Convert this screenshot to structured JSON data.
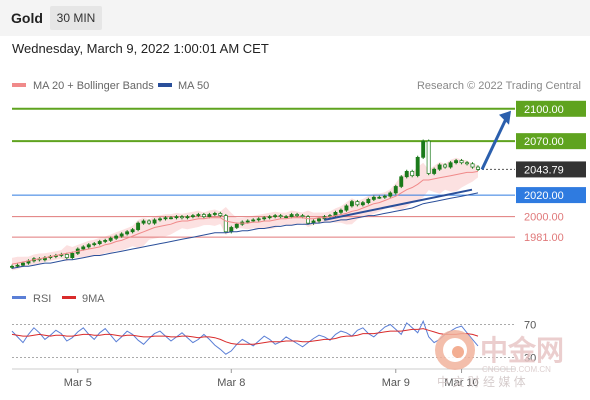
{
  "header": {
    "instrument": "Gold",
    "timeframe": "30 MIN",
    "datetime": "Wednesday, March 9, 2022 1:00:01 AM CET"
  },
  "legend": {
    "ma20": "MA 20 + Bollinger Bands",
    "ma50": "MA 50",
    "credit": "Research © 2022 Trading Central"
  },
  "colors": {
    "resistance": "#5fa31f",
    "pivot": "#2f7be0",
    "support": "#e0797a",
    "ma20": "#f08a8a",
    "ma50": "#2a4f9a",
    "arrow": "#2b5fad",
    "candle": "#1a7a1a",
    "bollinger": "#fbdada",
    "rsi": "#5b7fd6",
    "rsi_ma": "#d92b2b",
    "current": "#333333"
  },
  "chart_data": [
    {
      "type": "candlestick",
      "series_name": "Gold",
      "x_ticks": [
        "Mar 5",
        "Mar 8",
        "Mar 9",
        "Mar 10"
      ],
      "ylim": [
        1945,
        2110
      ],
      "levels": [
        {
          "value": 2100,
          "label": "2100.00",
          "kind": "resistance"
        },
        {
          "value": 2070,
          "label": "2070.00",
          "kind": "resistance"
        },
        {
          "value": 2043.79,
          "label": "2043.79",
          "kind": "current"
        },
        {
          "value": 2020,
          "label": "2020.00",
          "kind": "pivot"
        },
        {
          "value": 2000,
          "label": "2000.00",
          "kind": "support"
        },
        {
          "value": 1981,
          "label": "1981.00",
          "kind": "support"
        }
      ],
      "close": [
        1954,
        1955,
        1957,
        1959,
        1961,
        1960,
        1962,
        1963,
        1964,
        1965,
        1962,
        1966,
        1970,
        1972,
        1974,
        1975,
        1977,
        1978,
        1980,
        1982,
        1984,
        1986,
        1988,
        1994,
        1996,
        1994,
        1997,
        1998,
        1999,
        1999,
        2000,
        1999,
        2000,
        2001,
        2002,
        2000,
        2002,
        2003,
        2001,
        1986,
        1990,
        1993,
        1995,
        1996,
        1997,
        1998,
        1999,
        2000,
        2001,
        2000,
        2000,
        2002,
        2001,
        2000,
        1994,
        1996,
        1998,
        2000,
        2001,
        2004,
        2006,
        2010,
        2014,
        2011,
        2013,
        2016,
        2018,
        2018,
        2019,
        2022,
        2028,
        2037,
        2042,
        2038,
        2055,
        2070,
        2040,
        2044,
        2048,
        2046,
        2050,
        2052,
        2050,
        2049,
        2046,
        2043.79
      ],
      "target": 2100,
      "ma20": [
        1956,
        1957,
        1958,
        1959,
        1960,
        1961,
        1962,
        1963,
        1964,
        1965,
        1966,
        1967,
        1968,
        1969,
        1970,
        1971,
        1972,
        1974,
        1975,
        1977,
        1978,
        1980,
        1982,
        1984,
        1986,
        1988,
        1990,
        1991,
        1992,
        1993,
        1995,
        1996,
        1996,
        1997,
        1998,
        1998,
        1999,
        1999,
        1999,
        1996,
        1995,
        1994,
        1994,
        1994,
        1995,
        1995,
        1996,
        1996,
        1997,
        1998,
        1998,
        1999,
        1999,
        1999,
        1998,
        1998,
        1999,
        1999,
        2000,
        2001,
        2002,
        2003,
        2005,
        2006,
        2008,
        2010,
        2012,
        2013,
        2015,
        2017,
        2019,
        2022,
        2025,
        2027,
        2030,
        2034,
        2034,
        2035,
        2036,
        2037,
        2038,
        2039,
        2040,
        2041,
        2041,
        2042
      ],
      "ma50": [
        1952,
        1953,
        1954,
        1954,
        1955,
        1956,
        1957,
        1957,
        1958,
        1959,
        1960,
        1960,
        1961,
        1962,
        1963,
        1964,
        1964,
        1965,
        1966,
        1967,
        1968,
        1969,
        1970,
        1971,
        1972,
        1973,
        1974,
        1975,
        1976,
        1977,
        1978,
        1979,
        1980,
        1981,
        1982,
        1983,
        1984,
        1985,
        1985,
        1985,
        1986,
        1986,
        1987,
        1987,
        1988,
        1989,
        1989,
        1990,
        1991,
        1991,
        1992,
        1992,
        1993,
        1993,
        1993,
        1994,
        1994,
        1995,
        1995,
        1996,
        1997,
        1997,
        1998,
        1999,
        2000,
        2001,
        2001,
        2002,
        2003,
        2004,
        2005,
        2006,
        2007,
        2008,
        2010,
        2012,
        2013,
        2014,
        2015,
        2016,
        2017,
        2018,
        2019,
        2020,
        2021,
        2022
      ]
    },
    {
      "type": "line",
      "series": [
        {
          "name": "RSI"
        },
        {
          "name": "9MA"
        }
      ],
      "ylim": [
        10,
        90
      ],
      "y_ticks": [
        70,
        30
      ],
      "rsi": [
        62,
        55,
        48,
        58,
        66,
        60,
        52,
        57,
        63,
        59,
        50,
        54,
        61,
        66,
        58,
        52,
        60,
        65,
        57,
        49,
        55,
        62,
        58,
        51,
        46,
        53,
        59,
        62,
        56,
        50,
        55,
        60,
        54,
        48,
        52,
        58,
        52,
        45,
        40,
        34,
        38,
        46,
        52,
        48,
        44,
        50,
        56,
        52,
        46,
        49,
        55,
        51,
        47,
        43,
        48,
        53,
        57,
        55,
        51,
        58,
        62,
        60,
        56,
        63,
        66,
        59,
        55,
        61,
        67,
        70,
        64,
        58,
        72,
        66,
        60,
        74,
        55,
        48,
        52,
        58,
        62,
        66,
        68,
        60,
        52,
        44
      ],
      "rsi_ma": [
        58,
        57,
        56,
        56,
        57,
        58,
        57,
        56,
        57,
        57,
        56,
        56,
        57,
        58,
        58,
        57,
        57,
        58,
        58,
        57,
        56,
        57,
        57,
        56,
        55,
        55,
        56,
        56,
        56,
        55,
        55,
        56,
        56,
        55,
        54,
        55,
        55,
        54,
        52,
        49,
        47,
        46,
        46,
        46,
        46,
        47,
        48,
        49,
        49,
        49,
        50,
        50,
        50,
        49,
        49,
        50,
        51,
        52,
        52,
        53,
        55,
        56,
        56,
        57,
        59,
        59,
        59,
        60,
        61,
        62,
        62,
        62,
        63,
        64,
        64,
        65,
        63,
        61,
        59,
        58,
        58,
        58,
        59,
        59,
        58,
        56
      ]
    }
  ],
  "watermark": {
    "brand": "中金网",
    "url": "CNGOLD.COM.CN",
    "tagline": "中 文 财 经 媒 体"
  }
}
